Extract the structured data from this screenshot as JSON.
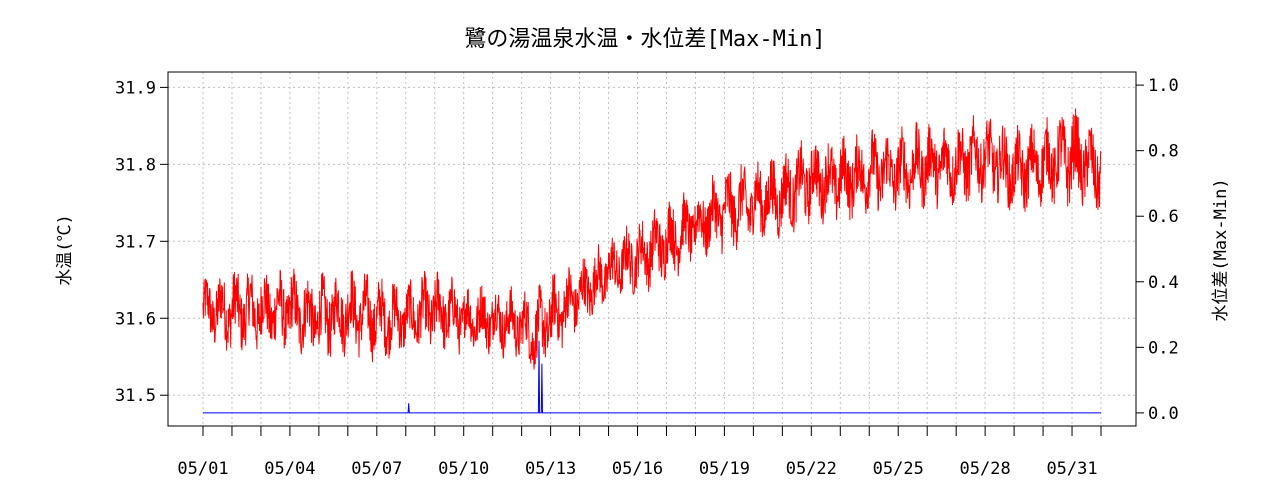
{
  "chart_data": {
    "type": "line",
    "title": "鷺の湯温泉水温・水位差[Max-Min]",
    "ylabel": "水温(℃)",
    "y2label": "水位差(Max-Min)",
    "xlabel": "",
    "x_ticks": [
      "05/01",
      "05/04",
      "05/07",
      "05/10",
      "05/13",
      "05/16",
      "05/19",
      "05/22",
      "05/25",
      "05/28",
      "05/31"
    ],
    "y_ticks": [
      "31.5",
      "31.6",
      "31.7",
      "31.8",
      "31.9"
    ],
    "y2_ticks": [
      "0.0",
      "0.2",
      "0.4",
      "0.6",
      "0.8",
      "1.0"
    ],
    "ylim": [
      31.46,
      31.92
    ],
    "y2lim": [
      -0.04,
      1.04
    ],
    "xlim": [
      0,
      31
    ],
    "grid": true,
    "series": [
      {
        "axis": "left",
        "color": "#ff0000",
        "x_day": [
          0,
          1,
          2,
          3,
          4,
          5,
          6,
          7,
          8,
          9,
          10,
          11,
          11.5,
          12,
          13,
          14,
          15,
          16,
          17,
          18,
          19,
          20,
          21,
          22,
          23,
          24,
          25,
          26,
          27,
          28,
          29,
          30,
          31
        ],
        "center": [
          31.61,
          31.61,
          31.61,
          31.61,
          31.6,
          31.61,
          31.6,
          31.6,
          31.61,
          31.6,
          31.6,
          31.59,
          31.58,
          31.6,
          31.63,
          31.66,
          31.68,
          31.7,
          31.72,
          31.74,
          31.75,
          31.76,
          31.78,
          31.78,
          31.79,
          31.79,
          31.8,
          31.8,
          31.81,
          31.79,
          31.8,
          31.81,
          31.79
        ],
        "amplitude": [
          0.05,
          0.06,
          0.06,
          0.06,
          0.06,
          0.06,
          0.06,
          0.05,
          0.06,
          0.05,
          0.05,
          0.05,
          0.06,
          0.06,
          0.05,
          0.05,
          0.05,
          0.06,
          0.05,
          0.06,
          0.06,
          0.06,
          0.06,
          0.06,
          0.06,
          0.06,
          0.06,
          0.06,
          0.06,
          0.06,
          0.06,
          0.07,
          0.06
        ]
      },
      {
        "axis": "right",
        "color": "#0000ff",
        "baseline": 0.0,
        "spikes": [
          {
            "day": 7.1,
            "value": 0.03
          },
          {
            "day": 11.6,
            "value": 0.22
          },
          {
            "day": 11.7,
            "value": 0.15
          }
        ]
      }
    ]
  }
}
